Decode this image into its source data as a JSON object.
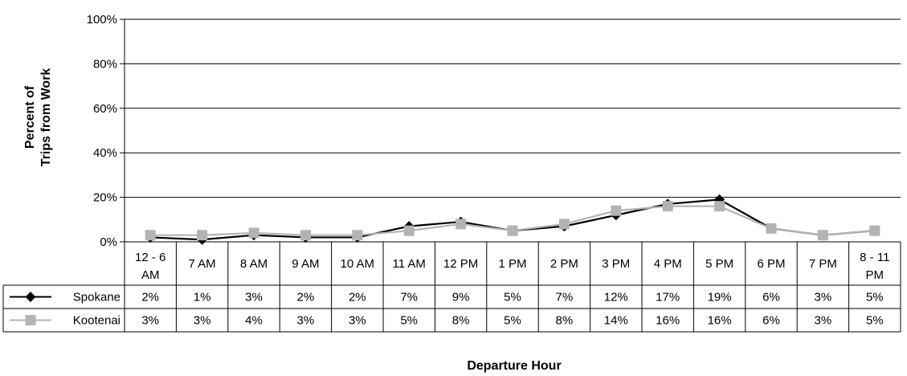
{
  "chart_data": {
    "type": "line",
    "title": "",
    "xlabel": "Departure Hour",
    "ylabel": "Percent of\nTrips from Work",
    "ylim": [
      0,
      100
    ],
    "yticks": [
      "0%",
      "20%",
      "40%",
      "60%",
      "80%",
      "100%"
    ],
    "grid": true,
    "legend": "data-table-left",
    "categories": [
      "12 - 6 AM",
      "7 AM",
      "8 AM",
      "9 AM",
      "10 AM",
      "11 AM",
      "12 PM",
      "1 PM",
      "2 PM",
      "3 PM",
      "4 PM",
      "5 PM",
      "6 PM",
      "7 PM",
      "8 - 11 PM"
    ],
    "series": [
      {
        "name": "Spokane",
        "values": [
          2,
          1,
          3,
          2,
          2,
          7,
          9,
          5,
          7,
          12,
          17,
          19,
          6,
          3,
          5
        ],
        "labels": [
          "2%",
          "1%",
          "3%",
          "2%",
          "2%",
          "7%",
          "9%",
          "5%",
          "7%",
          "12%",
          "17%",
          "19%",
          "6%",
          "3%",
          "5%"
        ],
        "color": "#000000",
        "marker": "diamond"
      },
      {
        "name": "Kootenai",
        "values": [
          3,
          3,
          4,
          3,
          3,
          5,
          8,
          5,
          8,
          14,
          16,
          16,
          6,
          3,
          5
        ],
        "labels": [
          "3%",
          "3%",
          "4%",
          "3%",
          "3%",
          "5%",
          "8%",
          "5%",
          "8%",
          "14%",
          "16%",
          "16%",
          "6%",
          "3%",
          "5%"
        ],
        "color": "#b3b3b3",
        "marker": "square"
      }
    ]
  }
}
